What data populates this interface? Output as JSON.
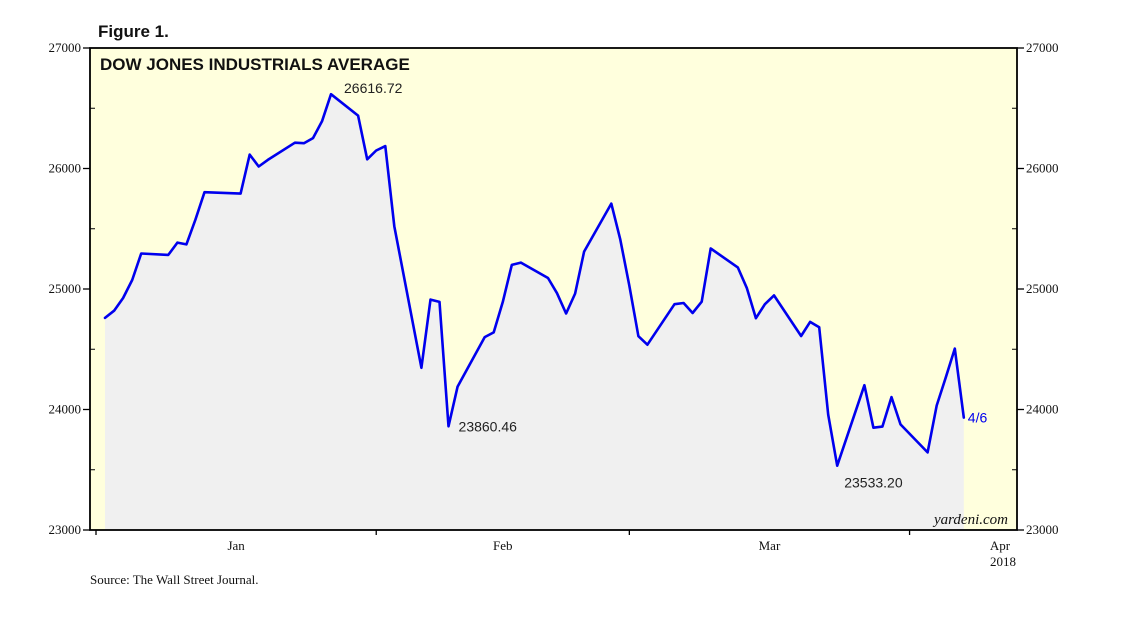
{
  "figure_label": "Figure 1.",
  "source": "Source: The Wall Street Journal.",
  "watermark": "yardeni.com",
  "colors": {
    "plot_background": "#ffffdd",
    "area_fill": "#f0f0f0",
    "line": "#0000ee",
    "axis": "#000000",
    "text": "#111111"
  },
  "chart_data": {
    "type": "line",
    "title": "DOW JONES INDUSTRIALS AVERAGE",
    "year_label": "2018",
    "ylim": [
      23000,
      27000
    ],
    "yticks": [
      23000,
      24000,
      25000,
      26000,
      27000
    ],
    "ytick_labels": [
      "23000",
      "24000",
      "25000",
      "26000",
      "27000"
    ],
    "xlim": [
      0,
      101
    ],
    "month_ticks": [
      0,
      31,
      59,
      90
    ],
    "month_labels": [
      {
        "label": "Jan",
        "x": 15.5
      },
      {
        "label": "Feb",
        "x": 45
      },
      {
        "label": "Mar",
        "x": 74.5
      },
      {
        "label": "Apr",
        "x": 100
      }
    ],
    "grid": false,
    "series": [
      {
        "name": "Dow Jones Industrials Average",
        "points": [
          [
            1,
            24760
          ],
          [
            2,
            24820
          ],
          [
            3,
            24925
          ],
          [
            4,
            25075
          ],
          [
            5,
            25295
          ],
          [
            8,
            25283
          ],
          [
            9,
            25385
          ],
          [
            10,
            25370
          ],
          [
            11,
            25575
          ],
          [
            12,
            25803
          ],
          [
            16,
            25792
          ],
          [
            17,
            26115
          ],
          [
            18,
            26017
          ],
          [
            19,
            26071
          ],
          [
            22,
            26214
          ],
          [
            23,
            26210
          ],
          [
            24,
            26252
          ],
          [
            25,
            26392
          ],
          [
            26,
            26616.72
          ],
          [
            29,
            26439
          ],
          [
            30,
            26076
          ],
          [
            31,
            26149
          ],
          [
            32,
            26186
          ],
          [
            33,
            25521
          ],
          [
            36,
            24346
          ],
          [
            37,
            24912
          ],
          [
            38,
            24893
          ],
          [
            39,
            23860.46
          ],
          [
            40,
            24190
          ],
          [
            43,
            24601
          ],
          [
            44,
            24640
          ],
          [
            45,
            24893
          ],
          [
            46,
            25200
          ],
          [
            47,
            25219
          ],
          [
            50,
            25091
          ],
          [
            51,
            24965
          ],
          [
            52,
            24797
          ],
          [
            53,
            24962
          ],
          [
            54,
            25310
          ],
          [
            57,
            25709
          ],
          [
            58,
            25410
          ],
          [
            59,
            25029
          ],
          [
            60,
            24608
          ],
          [
            61,
            24538
          ],
          [
            64,
            24874
          ],
          [
            65,
            24884
          ],
          [
            66,
            24801
          ],
          [
            67,
            24895
          ],
          [
            68,
            25336
          ],
          [
            71,
            25179
          ],
          [
            72,
            25007
          ],
          [
            73,
            24758
          ],
          [
            74,
            24874
          ],
          [
            75,
            24947
          ],
          [
            78,
            24610
          ],
          [
            79,
            24727
          ],
          [
            80,
            24682
          ],
          [
            81,
            23958
          ],
          [
            82,
            23533.2
          ],
          [
            85,
            24202
          ],
          [
            86,
            23849
          ],
          [
            87,
            23858
          ],
          [
            88,
            24103
          ],
          [
            89,
            23876
          ],
          [
            92,
            23644
          ],
          [
            93,
            24033
          ],
          [
            94,
            24264
          ],
          [
            95,
            24505
          ],
          [
            96,
            23933
          ]
        ]
      }
    ],
    "annotations": [
      {
        "text": "26616.72",
        "x": 26,
        "y": 26616.72,
        "position": "right-above"
      },
      {
        "text": "23860.46",
        "x": 39,
        "y": 23860.46,
        "position": "right"
      },
      {
        "text": "23533.20",
        "x": 82,
        "y": 23533.2,
        "position": "below-right"
      },
      {
        "text": "4/6",
        "x": 96,
        "y": 23933,
        "position": "right"
      }
    ]
  }
}
